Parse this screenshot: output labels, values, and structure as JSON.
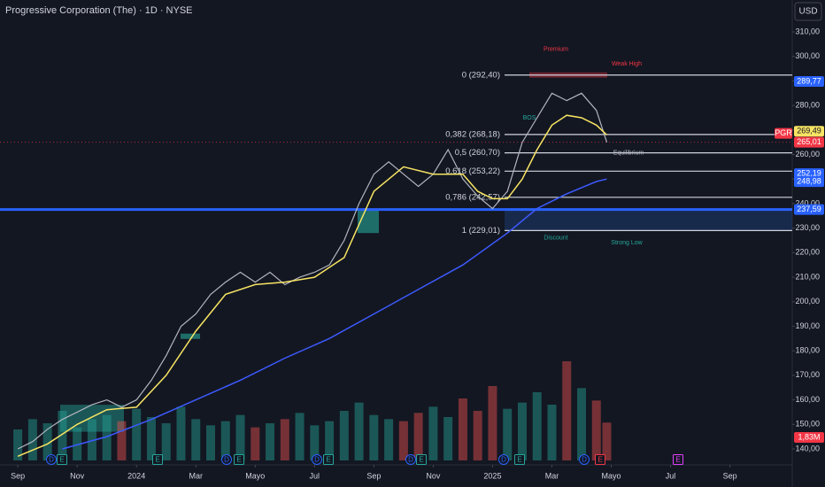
{
  "chart_data": {
    "type": "line",
    "title": "Progressive Corporation (The) · 1D · NYSE",
    "currency": "USD",
    "xlim": [
      -0.6,
      26.1
    ],
    "ylim": [
      135.3,
      323.0
    ],
    "xticks": [
      {
        "value": 0,
        "label": "Sep"
      },
      {
        "value": 2,
        "label": "Nov"
      },
      {
        "value": 4,
        "label": "2024"
      },
      {
        "value": 6,
        "label": "Mar"
      },
      {
        "value": 8,
        "label": "Mayo"
      },
      {
        "value": 10,
        "label": "Jul"
      },
      {
        "value": 12,
        "label": "Sep"
      },
      {
        "value": 14,
        "label": "Nov"
      },
      {
        "value": 16,
        "label": "2025"
      },
      {
        "value": 18,
        "label": "Mar"
      },
      {
        "value": 20,
        "label": "Mayo"
      },
      {
        "value": 22,
        "label": "Jul"
      },
      {
        "value": 24,
        "label": "Sep"
      }
    ],
    "yticks": [
      {
        "value": 140,
        "label": "140,00"
      },
      {
        "value": 150,
        "label": "150,00"
      },
      {
        "value": 160,
        "label": "160,00"
      },
      {
        "value": 170,
        "label": "170,00"
      },
      {
        "value": 180,
        "label": "180,00"
      },
      {
        "value": 190,
        "label": "190,00"
      },
      {
        "value": 200,
        "label": "200,00"
      },
      {
        "value": 210,
        "label": "210,00"
      },
      {
        "value": 220,
        "label": "220,00"
      },
      {
        "value": 230,
        "label": "230,00"
      },
      {
        "value": 240,
        "label": "240,00"
      },
      {
        "value": 250,
        "label": "250,00"
      },
      {
        "value": 260,
        "label": "260,00"
      },
      {
        "value": 270,
        "label": "270,00"
      },
      {
        "value": 280,
        "label": "280,00"
      },
      {
        "value": 290,
        "label": "290,00"
      },
      {
        "value": 300,
        "label": "300,00"
      },
      {
        "value": 310,
        "label": "310,00"
      }
    ],
    "grid": false,
    "series": [
      {
        "name": "PGR",
        "color": "#f23645",
        "line_color": "#b2b5be",
        "x": [
          0,
          0.5,
          1,
          1.5,
          2,
          2.5,
          3,
          3.5,
          4,
          4.5,
          5,
          5.5,
          6,
          6.5,
          7,
          7.5,
          8,
          8.5,
          9,
          9.5,
          10,
          10.5,
          11,
          11.5,
          12,
          12.5,
          13,
          13.5,
          14,
          14.5,
          15,
          15.5,
          16,
          16.5,
          17,
          17.5,
          18,
          18.5,
          19,
          19.5,
          19.85
        ],
        "values": [
          140,
          143,
          148,
          152,
          155,
          158,
          160,
          157,
          160,
          168,
          178,
          190,
          195,
          203,
          208,
          212,
          208,
          212,
          207,
          210,
          212,
          215,
          225,
          240,
          252,
          257,
          252,
          247,
          252,
          262,
          250,
          243,
          238,
          245,
          265,
          275,
          285,
          282,
          285,
          278,
          265.01
        ]
      },
      {
        "color": "#f7e463",
        "x": [
          0,
          1,
          2,
          3,
          4,
          5,
          6,
          7,
          8,
          9,
          10,
          11,
          12,
          13,
          14,
          15,
          15.5,
          16,
          16.5,
          17,
          17.5,
          18,
          18.5,
          19,
          19.5,
          19.85
        ],
        "values": [
          137,
          142,
          150,
          156,
          157,
          170,
          188,
          203,
          207,
          208,
          210,
          218,
          245,
          255,
          252,
          252,
          245,
          242,
          242,
          250,
          262,
          272,
          276,
          275,
          272,
          268
        ]
      },
      {
        "color": "#3d5afe",
        "x": [
          1.5,
          3,
          4.5,
          6,
          7.5,
          9,
          10.5,
          12,
          13.5,
          15,
          16.5,
          17.5,
          18.5,
          19.5,
          19.85
        ],
        "values": [
          140,
          145,
          152,
          160,
          168,
          177,
          185,
          195,
          205,
          215,
          228,
          238,
          244,
          249,
          250
        ]
      }
    ],
    "volume": {
      "ylim": [
        0,
        6
      ],
      "up_color": "#26a69a",
      "down_color": "#ef5350",
      "values": [
        1.5,
        2.0,
        1.8,
        2.4,
        1.6,
        2.0,
        2.2,
        1.9,
        2.5,
        2.1,
        1.8,
        2.6,
        2.0,
        1.7,
        1.9,
        2.2,
        1.6,
        1.8,
        2.0,
        2.3,
        1.7,
        1.9,
        2.4,
        2.8,
        2.2,
        2.0,
        1.9,
        2.3,
        2.6,
        2.1,
        3.0,
        2.4,
        3.6,
        2.5,
        2.8,
        3.3,
        2.7,
        4.8,
        3.5,
        2.9,
        1.83
      ],
      "current": {
        "value": 1.83,
        "label": "1,83M",
        "color": "#f23645"
      }
    },
    "fib_levels": [
      {
        "value": 292.4,
        "label": "0 (292,40)"
      },
      {
        "value": 268.18,
        "label": "0,382 (268,18)"
      },
      {
        "value": 260.7,
        "label": "0,5 (260,70)"
      },
      {
        "value": 253.22,
        "label": "0,618 (253,22)"
      },
      {
        "value": 242.57,
        "label": "0,786 (242,57)"
      },
      {
        "value": 229.01,
        "label": "1 (229,01)"
      }
    ],
    "support_line": {
      "value": 237.59,
      "color": "#2962ff"
    },
    "price_labels": [
      {
        "value": 289.77,
        "label": "289,77",
        "color": "#2962ff"
      },
      {
        "value": 269.49,
        "label": "269,49",
        "color": "#f7e463"
      },
      {
        "value": 265.01,
        "label": "265,01",
        "color": "#f23645"
      },
      {
        "value": 252.19,
        "label": "252,19",
        "color": "#2962ff"
      },
      {
        "value": 248.98,
        "label": "248,98",
        "color": "#2962ff"
      },
      {
        "value": 237.59,
        "label": "237,59",
        "color": "#2962ff"
      }
    ],
    "annotations": [
      "Premium",
      "Weak High",
      "Equilibrium",
      "Discount",
      "Strong Low",
      "BOS"
    ],
    "events": [
      "D",
      "E",
      "E",
      "D",
      "E",
      "D",
      "E",
      "D",
      "E",
      "D",
      "E",
      "D",
      "E",
      "E"
    ]
  }
}
